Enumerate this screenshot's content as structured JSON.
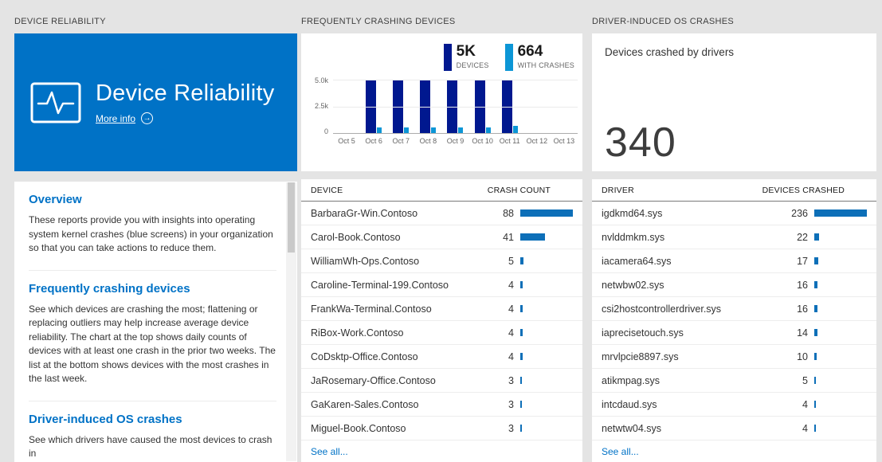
{
  "colors": {
    "background": "#e4e4e4",
    "accent_blue": "#0072c6",
    "dark_bar": "#00188f",
    "light_bar": "#0c96d6",
    "row_bar": "#0d6fb8"
  },
  "left": {
    "header": "DEVICE RELIABILITY",
    "tile": {
      "title": "Device Reliability",
      "more_info": "More info"
    },
    "sections": [
      {
        "heading": "Overview",
        "body": "These reports provide you with insights into operating system kernel crashes (blue screens) in your organization so that you can take actions to reduce them."
      },
      {
        "heading": "Frequently crashing devices",
        "body": "See which devices are crashing the most; flattening or replacing outliers may help increase average device reliability. The chart at the top shows daily counts of devices with at least one crash in the prior two weeks. The list at the bottom shows devices with the most crashes in the last week."
      },
      {
        "heading": "Driver-induced OS crashes",
        "body": "See which drivers have caused the most devices to crash in"
      }
    ]
  },
  "middle": {
    "header": "FREQUENTLY CRASHING DEVICES",
    "legend": [
      {
        "value": "5K",
        "label": "DEVICES"
      },
      {
        "value": "664",
        "label": "WITH CRASHES"
      }
    ],
    "table": {
      "col1": "DEVICE",
      "col2": "CRASH COUNT",
      "rows": [
        {
          "name": "BarbaraGr-Win.Contoso",
          "value": 88
        },
        {
          "name": "Carol-Book.Contoso",
          "value": 41
        },
        {
          "name": "WilliamWh-Ops.Contoso",
          "value": 5
        },
        {
          "name": "Caroline-Terminal-199.Contoso",
          "value": 4
        },
        {
          "name": "FrankWa-Terminal.Contoso",
          "value": 4
        },
        {
          "name": "RiBox-Work.Contoso",
          "value": 4
        },
        {
          "name": "CoDsktp-Office.Contoso",
          "value": 4
        },
        {
          "name": "JaRosemary-Office.Contoso",
          "value": 3
        },
        {
          "name": "GaKaren-Sales.Contoso",
          "value": 3
        },
        {
          "name": "Miguel-Book.Contoso",
          "value": 3
        }
      ],
      "see_all": "See all..."
    }
  },
  "right": {
    "header": "DRIVER-INDUCED OS CRASHES",
    "kpi": {
      "label": "Devices crashed by drivers",
      "value": "340"
    },
    "table": {
      "col1": "DRIVER",
      "col2": "DEVICES CRASHED",
      "rows": [
        {
          "name": "igdkmd64.sys",
          "value": 236
        },
        {
          "name": "nvlddmkm.sys",
          "value": 22
        },
        {
          "name": "iacamera64.sys",
          "value": 17
        },
        {
          "name": "netwbw02.sys",
          "value": 16
        },
        {
          "name": "csi2hostcontrollerdriver.sys",
          "value": 16
        },
        {
          "name": "iaprecisetouch.sys",
          "value": 14
        },
        {
          "name": "mrvlpcie8897.sys",
          "value": 10
        },
        {
          "name": "atikmpag.sys",
          "value": 5
        },
        {
          "name": "intcdaud.sys",
          "value": 4
        },
        {
          "name": "netwtw04.sys",
          "value": 4
        }
      ],
      "see_all": "See all..."
    }
  },
  "chart_data": {
    "type": "bar",
    "title": "Daily count of devices with at least one crash",
    "x": [
      "Oct 5",
      "Oct 6",
      "Oct 7",
      "Oct 8",
      "Oct 9",
      "Oct 10",
      "Oct 11",
      "Oct 12",
      "Oct 13"
    ],
    "yticks": [
      "5.0k",
      "2.5k",
      "0"
    ],
    "ylim": [
      0,
      5000
    ],
    "grid": true,
    "legend_position": "top-right",
    "series": [
      {
        "name": "DEVICES",
        "total_label": "5K",
        "color": "#00188f",
        "values": [
          null,
          4900,
          4900,
          4900,
          4900,
          4900,
          4900,
          null,
          null
        ]
      },
      {
        "name": "WITH CRASHES",
        "total_label": "664",
        "color": "#0c96d6",
        "values": [
          null,
          550,
          540,
          560,
          550,
          560,
          660,
          null,
          null
        ]
      }
    ]
  }
}
